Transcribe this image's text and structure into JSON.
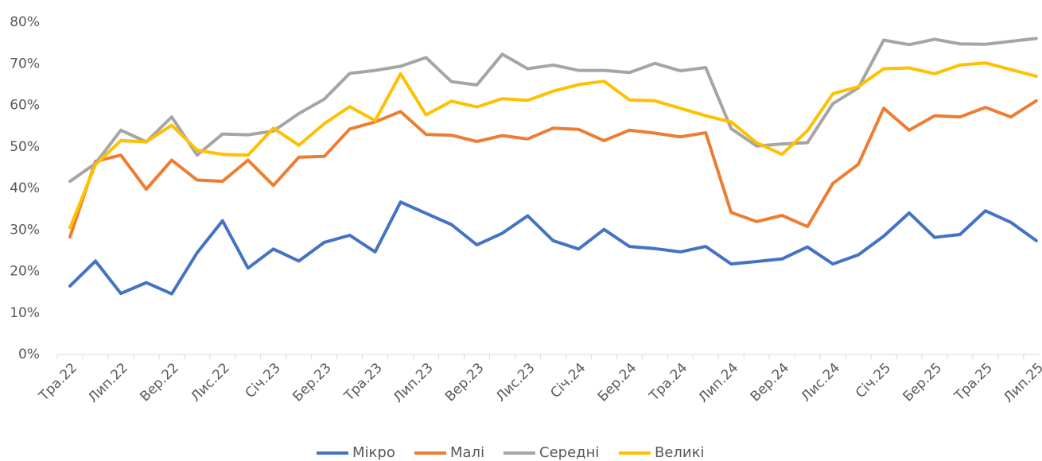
{
  "chart_data": {
    "type": "line",
    "categories": [
      "Тра.22",
      null,
      "Лип.22",
      null,
      "Вер.22",
      null,
      "Лис.22",
      null,
      "Січ.23",
      null,
      "Бер.23",
      null,
      "Тра.23",
      null,
      "Лип.23",
      null,
      "Вер.23",
      null,
      "Лис.23",
      null,
      "Січ.24",
      null,
      "Бер.24",
      null,
      "Тра.24",
      null,
      "Лип.24",
      null,
      "Вер.24",
      null,
      "Лис.24",
      null,
      "Січ.25",
      null,
      "Бер.25",
      null,
      "Тра.25",
      null,
      "Лип.25"
    ],
    "series": [
      {
        "name": "Мікро",
        "color": "#4472c4",
        "values": [
          16.5,
          22.5,
          14.7,
          17.3,
          14.6,
          24.5,
          32.2,
          20.8,
          25.4,
          22.5,
          27,
          28.7,
          24.7,
          36.7,
          34,
          31.3,
          26.4,
          29.2,
          33.4,
          27.4,
          25.4,
          30.1,
          26,
          25.5,
          24.7,
          26,
          21.8,
          22.4,
          23,
          25.9,
          21.8,
          24,
          28.5,
          34.1,
          28.2,
          28.9,
          34.6,
          31.8,
          27.4
        ]
      },
      {
        "name": "Малі",
        "color": "#ed7d31",
        "values": [
          28.3,
          46.5,
          48,
          39.8,
          46.8,
          42,
          41.7,
          46.8,
          40.7,
          47.5,
          47.7,
          54.3,
          56,
          58.5,
          53,
          52.8,
          51.3,
          52.7,
          51.9,
          54.5,
          54.2,
          51.5,
          54,
          53.3,
          52.4,
          53.4,
          34.2,
          32,
          33.5,
          30.8,
          41.2,
          45.8,
          59.3,
          54,
          57.5,
          57.2,
          59.5,
          57.2,
          61.1
        ]
      },
      {
        "name": "Середні",
        "color": "#a5a5a5",
        "values": [
          41.7,
          46,
          54,
          51.2,
          57.2,
          48,
          53.1,
          52.9,
          53.8,
          58,
          61.5,
          67.7,
          68.4,
          69.4,
          71.5,
          65.7,
          64.9,
          72.3,
          68.8,
          69.7,
          68.4,
          68.4,
          67.9,
          70.1,
          68.3,
          69.1,
          54.4,
          50.2,
          50.7,
          51,
          60.4,
          64.2,
          75.7,
          74.6,
          75.9,
          74.8,
          74.7,
          75.4,
          76.1
        ]
      },
      {
        "name": "Великі",
        "color": "#ffc000",
        "values": [
          30.5,
          45.7,
          51.5,
          51.2,
          55.2,
          49.2,
          48.2,
          48,
          54.5,
          50.4,
          55.6,
          59.7,
          56.3,
          67.6,
          57.7,
          61,
          59.6,
          61.6,
          61.2,
          63.4,
          65,
          65.8,
          61.3,
          61.1,
          59.3,
          57.5,
          56,
          51,
          48.2,
          53.9,
          62.8,
          64.5,
          68.8,
          69,
          67.6,
          69.7,
          70.2,
          68.6,
          67
        ]
      }
    ],
    "ylim": [
      0,
      80
    ],
    "yticks": [
      {
        "value": 0,
        "label": "0%"
      },
      {
        "value": 10,
        "label": "10%"
      },
      {
        "value": 20,
        "label": "20%"
      },
      {
        "value": 30,
        "label": "30%"
      },
      {
        "value": 40,
        "label": "40%"
      },
      {
        "value": 50,
        "label": "50%"
      },
      {
        "value": 60,
        "label": "60%"
      },
      {
        "value": 70,
        "label": "70%"
      },
      {
        "value": 80,
        "label": "80%"
      }
    ],
    "grid": false,
    "legend": "bottom"
  }
}
